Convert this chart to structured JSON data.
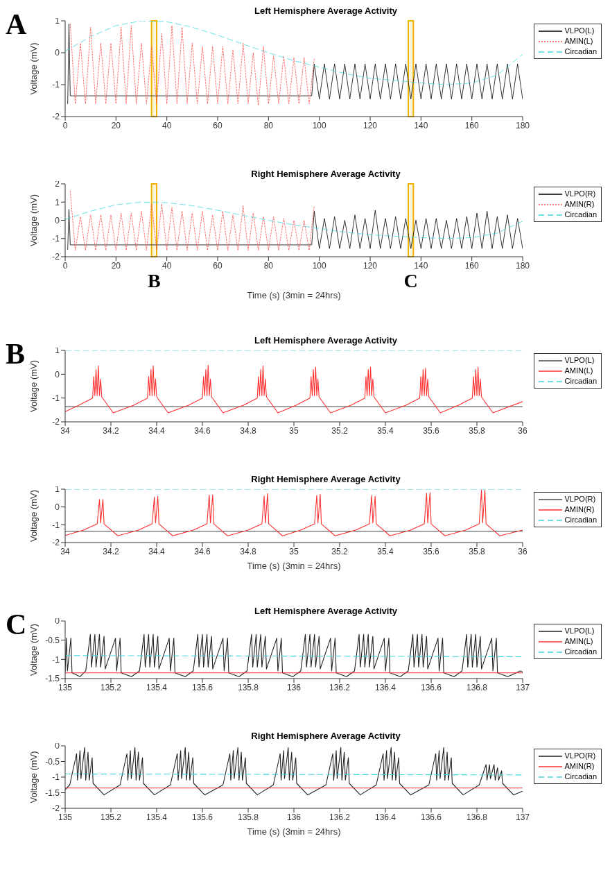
{
  "chart_data": [
    {
      "type": "line",
      "title": "Left Hemisphere Average Activity",
      "ylabel": "Voltage (mV)",
      "annotations": [
        "A"
      ],
      "xlim": [
        0,
        180
      ],
      "xticks": [
        0,
        20,
        40,
        60,
        80,
        100,
        120,
        140,
        160,
        180
      ],
      "ylim": [
        -2,
        1
      ],
      "yticks": [
        -2,
        -1,
        0,
        1
      ],
      "legend": "right",
      "bands": [
        {
          "axis": "x",
          "from": 34,
          "to": 36,
          "color": "#f0b400"
        },
        {
          "axis": "x",
          "from": 135,
          "to": 137,
          "color": "#f0b400"
        }
      ],
      "series": [
        {
          "name": "VLPO(L)",
          "color": "#000000",
          "line_style": "solid",
          "x": [
            1,
            1.5,
            2,
            97,
            98,
            100,
            102,
            104,
            106,
            108,
            110,
            112,
            114,
            116,
            118,
            120,
            122,
            124,
            126,
            128,
            130,
            132,
            134,
            136,
            138,
            140,
            142,
            144,
            146,
            148,
            150,
            152,
            154,
            156,
            158,
            160,
            162,
            164,
            166,
            168,
            170,
            172,
            174,
            176,
            178,
            180
          ],
          "values": [
            -1.6,
            0.9,
            -1.35,
            -1.35,
            -0.35,
            -1.45,
            -0.35,
            -1.45,
            -0.35,
            -1.45,
            -0.35,
            -1.45,
            -0.35,
            -1.45,
            -0.35,
            -1.45,
            -0.35,
            -1.45,
            -0.35,
            -1.45,
            -0.35,
            -1.45,
            -0.35,
            -1.45,
            -0.35,
            -1.45,
            -0.35,
            -1.45,
            -0.35,
            -1.45,
            -0.35,
            -1.45,
            -0.35,
            -1.45,
            -0.35,
            -1.45,
            -0.35,
            -1.45,
            -0.35,
            -1.45,
            -0.35,
            -1.45,
            -0.35,
            -1.45,
            -0.35,
            -1.45
          ]
        },
        {
          "name": "AMIN(L)",
          "color": "#ff5050",
          "line_style": "dotted",
          "x": [
            2,
            4,
            6,
            8,
            10,
            12,
            14,
            16,
            18,
            20,
            22,
            24,
            26,
            28,
            30,
            32,
            34,
            36,
            38,
            40,
            42,
            44,
            46,
            48,
            50,
            52,
            54,
            56,
            58,
            60,
            62,
            64,
            66,
            68,
            70,
            72,
            74,
            76,
            78,
            80,
            82,
            84,
            86,
            88,
            90,
            92,
            94,
            96,
            98
          ],
          "values": [
            0.9,
            -1.6,
            0.3,
            -1.6,
            0.8,
            -1.6,
            0.3,
            -1.6,
            0.3,
            -1.6,
            0.8,
            -1.6,
            0.85,
            -1.6,
            0.3,
            -1.6,
            0.2,
            -1.6,
            0.6,
            -1.6,
            0.85,
            -1.6,
            0.8,
            -1.6,
            0.3,
            -1.6,
            0.2,
            -1.6,
            0.2,
            -1.6,
            0.2,
            -1.6,
            0.1,
            -1.6,
            0.3,
            -1.6,
            0.0,
            -1.65,
            0.2,
            -1.6,
            -0.1,
            -1.6,
            -0.1,
            -1.6,
            -0.15,
            -1.6,
            -0.15,
            -1.6,
            -0.2
          ]
        },
        {
          "name": "Circadian",
          "color": "#40d8e0",
          "line_style": "dashed",
          "x": [
            0,
            10,
            20,
            30,
            40,
            50,
            60,
            70,
            80,
            90,
            100,
            110,
            120,
            130,
            140,
            150,
            160,
            170,
            180
          ],
          "values": [
            0.05,
            0.5,
            0.85,
            1.0,
            0.97,
            0.8,
            0.55,
            0.27,
            0.0,
            -0.25,
            -0.45,
            -0.65,
            -0.8,
            -0.87,
            -0.95,
            -1.0,
            -0.95,
            -0.7,
            -0.05
          ]
        }
      ]
    },
    {
      "type": "line",
      "title": "Right Hemisphere Average Activity",
      "xlabel": "Time (s) (3min = 24hrs)",
      "ylabel": "Voltage (mV)",
      "xlim": [
        0,
        180
      ],
      "xticks": [
        0,
        20,
        40,
        60,
        80,
        100,
        120,
        140,
        160,
        180
      ],
      "ylim": [
        -2,
        2
      ],
      "yticks": [
        -2,
        -1,
        0,
        1,
        2
      ],
      "legend": "right",
      "bands": [
        {
          "axis": "x",
          "from": 34,
          "to": 36,
          "color": "#f0b400",
          "label": "B"
        },
        {
          "axis": "x",
          "from": 135,
          "to": 137,
          "color": "#f0b400",
          "label": "C"
        }
      ],
      "series": [
        {
          "name": "VLPO(R)",
          "color": "#000000",
          "line_style": "solid",
          "x": [
            1,
            1.5,
            2,
            97,
            98,
            100,
            102,
            104,
            106,
            108,
            110,
            112,
            114,
            116,
            118,
            120,
            122,
            124,
            126,
            128,
            130,
            132,
            134,
            136,
            138,
            140,
            142,
            144,
            146,
            148,
            150,
            152,
            154,
            156,
            158,
            160,
            162,
            164,
            166,
            168,
            170,
            172,
            174,
            176,
            178,
            180
          ],
          "values": [
            -1.6,
            0.6,
            -1.35,
            -1.35,
            0.5,
            -1.55,
            0.1,
            -1.55,
            0.2,
            -1.55,
            0.0,
            -1.55,
            0.3,
            -1.55,
            0.1,
            -1.55,
            0.55,
            -1.55,
            0.1,
            -1.55,
            0.2,
            -1.55,
            0.1,
            -1.55,
            0.0,
            -1.55,
            0.1,
            -1.55,
            0.1,
            -1.55,
            0.0,
            -1.55,
            0.1,
            -1.55,
            0.2,
            -1.55,
            0.4,
            -1.55,
            0.5,
            -1.55,
            0.2,
            -1.55,
            0.3,
            -1.55,
            0.1,
            -1.55
          ]
        },
        {
          "name": "AMIN(R)",
          "color": "#ff5050",
          "line_style": "dotted",
          "x": [
            2,
            4,
            6,
            8,
            10,
            12,
            14,
            16,
            18,
            20,
            22,
            24,
            26,
            28,
            30,
            32,
            34,
            36,
            38,
            40,
            42,
            44,
            46,
            48,
            50,
            52,
            54,
            56,
            58,
            60,
            62,
            64,
            66,
            68,
            70,
            72,
            74,
            76,
            78,
            80,
            82,
            84,
            86,
            88,
            90,
            92,
            94,
            96,
            98
          ],
          "values": [
            1.6,
            -1.65,
            0.2,
            -1.65,
            0.3,
            -1.65,
            0.3,
            -1.65,
            0.3,
            -1.65,
            0.4,
            -1.65,
            0.4,
            -1.65,
            0.5,
            -1.65,
            0.9,
            -1.65,
            0.9,
            -1.65,
            0.7,
            -1.65,
            0.5,
            -1.65,
            0.4,
            -1.65,
            0.5,
            -1.65,
            0.3,
            -1.65,
            0.5,
            -1.65,
            0.3,
            -1.65,
            0.8,
            -1.65,
            0.4,
            -1.65,
            0.2,
            -1.65,
            0.2,
            -1.65,
            0.1,
            -1.65,
            0.0,
            -1.65,
            0.0,
            -1.65,
            0.8
          ]
        },
        {
          "name": "Circadian",
          "color": "#40d8e0",
          "line_style": "dashed",
          "x": [
            0,
            10,
            20,
            30,
            40,
            50,
            60,
            70,
            80,
            90,
            100,
            110,
            120,
            130,
            140,
            150,
            160,
            170,
            180
          ],
          "values": [
            0.05,
            0.5,
            0.85,
            1.0,
            0.97,
            0.8,
            0.55,
            0.27,
            0.0,
            -0.25,
            -0.45,
            -0.65,
            -0.8,
            -0.87,
            -0.95,
            -1.0,
            -0.95,
            -0.7,
            -0.05
          ]
        }
      ]
    },
    {
      "type": "line",
      "title": "Left Hemisphere Average Activity",
      "ylabel": "Voltage (mV)",
      "annotations": [
        "B"
      ],
      "xlim": [
        34,
        36
      ],
      "xticks": [
        34,
        34.2,
        34.4,
        34.6,
        34.8,
        35,
        35.2,
        35.4,
        35.6,
        35.8,
        36
      ],
      "ylim": [
        -2,
        1
      ],
      "yticks": [
        -2,
        -1,
        0,
        1
      ],
      "legend": "right",
      "series": [
        {
          "name": "VLPO(L)",
          "color": "#444444",
          "line_style": "solid",
          "x": [
            34,
            36
          ],
          "values": [
            -1.36,
            -1.36
          ]
        },
        {
          "name": "AMIN(L)",
          "color": "#ff3030",
          "line_style": "solid",
          "x": [
            34,
            34.06,
            34.12,
            34.125,
            34.13,
            34.135,
            34.14,
            34.145,
            34.15,
            34.155,
            34.16,
            34.21,
            34.3,
            34.36,
            34.365,
            34.37,
            34.375,
            34.38,
            34.385,
            34.39,
            34.395,
            34.4,
            34.45,
            34.54,
            34.6,
            34.605,
            34.61,
            34.615,
            34.62,
            34.625,
            34.63,
            34.635,
            34.64,
            34.69,
            34.78,
            34.84,
            34.845,
            34.85,
            34.855,
            34.86,
            34.865,
            34.87,
            34.875,
            34.88,
            34.93,
            35.01,
            35.07,
            35.075,
            35.08,
            35.085,
            35.09,
            35.095,
            35.1,
            35.105,
            35.11,
            35.16,
            35.25,
            35.31,
            35.315,
            35.32,
            35.325,
            35.33,
            35.335,
            35.34,
            35.345,
            35.35,
            35.4,
            35.49,
            35.55,
            35.555,
            35.56,
            35.565,
            35.57,
            35.575,
            35.58,
            35.585,
            35.59,
            35.64,
            35.72,
            35.78,
            35.785,
            35.79,
            35.795,
            35.8,
            35.805,
            35.81,
            35.815,
            35.82,
            35.87,
            36
          ],
          "values": [
            -1.57,
            -1.3,
            -1.0,
            -0.1,
            -0.9,
            0.2,
            -0.9,
            0.35,
            -0.9,
            -0.2,
            -0.95,
            -1.62,
            -1.3,
            -1.0,
            -0.1,
            -0.9,
            0.2,
            -0.9,
            0.35,
            -0.9,
            -0.2,
            -0.95,
            -1.62,
            -1.3,
            -1.0,
            -0.1,
            -0.9,
            0.2,
            -0.9,
            0.38,
            -0.9,
            -0.2,
            -0.95,
            -1.62,
            -1.3,
            -1.0,
            -0.1,
            -0.9,
            0.2,
            -0.9,
            0.35,
            -0.9,
            -0.2,
            -0.95,
            -1.62,
            -1.3,
            -1.0,
            -0.1,
            -0.9,
            0.2,
            -0.9,
            0.3,
            -0.9,
            -0.2,
            -0.95,
            -1.62,
            -1.3,
            -1.0,
            -0.1,
            -0.9,
            0.2,
            -0.9,
            0.3,
            -0.9,
            -0.2,
            -0.95,
            -1.62,
            -1.3,
            -1.0,
            -0.1,
            -0.9,
            0.2,
            -0.9,
            0.25,
            -0.9,
            -0.2,
            -0.95,
            -1.62,
            -1.3,
            -1.0,
            -0.1,
            -0.9,
            0.2,
            -0.9,
            0.3,
            -0.9,
            -0.2,
            -0.95,
            -1.62,
            -1.15
          ]
        },
        {
          "name": "Circadian",
          "color": "#40d8e0",
          "line_style": "dashed",
          "x": [
            34,
            36
          ],
          "values": [
            1.0,
            1.0
          ]
        }
      ]
    },
    {
      "type": "line",
      "title": "Right Hemisphere Average Activity",
      "xlabel": "Time (s) (3min = 24hrs)",
      "ylabel": "Voltage (mV)",
      "xlim": [
        34,
        36
      ],
      "xticks": [
        34,
        34.2,
        34.4,
        34.6,
        34.8,
        35,
        35.2,
        35.4,
        35.6,
        35.8,
        36
      ],
      "ylim": [
        -2,
        1
      ],
      "yticks": [
        -2,
        -1,
        0,
        1
      ],
      "legend": "right",
      "series": [
        {
          "name": "VLPO(R)",
          "color": "#444444",
          "line_style": "solid",
          "x": [
            34,
            36
          ],
          "values": [
            -1.36,
            -1.36
          ]
        },
        {
          "name": "AMIN(R)",
          "color": "#ff3030",
          "line_style": "solid",
          "x": [
            34,
            34.08,
            34.14,
            34.15,
            34.155,
            34.165,
            34.17,
            34.23,
            34.32,
            34.38,
            34.39,
            34.395,
            34.405,
            34.41,
            34.47,
            34.56,
            34.62,
            34.63,
            34.635,
            34.645,
            34.65,
            34.71,
            34.8,
            34.86,
            34.87,
            34.875,
            34.885,
            34.89,
            34.95,
            35.03,
            35.09,
            35.1,
            35.105,
            35.115,
            35.12,
            35.18,
            35.27,
            35.33,
            35.34,
            35.345,
            35.355,
            35.36,
            35.42,
            35.51,
            35.57,
            35.58,
            35.585,
            35.595,
            35.6,
            35.66,
            35.75,
            35.81,
            35.82,
            35.825,
            35.835,
            35.84,
            35.9,
            36
          ],
          "values": [
            -1.6,
            -1.3,
            -0.95,
            0.42,
            -0.9,
            0.42,
            -0.95,
            -1.62,
            -1.3,
            -0.95,
            0.55,
            -0.9,
            0.6,
            -0.95,
            -1.62,
            -1.3,
            -0.95,
            0.68,
            -0.9,
            0.68,
            -0.95,
            -1.62,
            -1.3,
            -0.95,
            0.62,
            -0.9,
            0.75,
            -0.95,
            -1.62,
            -1.3,
            -0.95,
            0.65,
            -0.9,
            0.72,
            -0.95,
            -1.62,
            -1.3,
            -0.95,
            0.65,
            -0.9,
            0.6,
            -0.95,
            -1.62,
            -1.3,
            -0.95,
            0.77,
            -0.9,
            0.8,
            -0.95,
            -1.62,
            -1.3,
            -0.95,
            0.95,
            -0.9,
            0.95,
            -0.95,
            -1.62,
            -1.3
          ]
        },
        {
          "name": "Circadian",
          "color": "#40d8e0",
          "line_style": "dashed",
          "x": [
            34,
            36
          ],
          "values": [
            1.0,
            1.0
          ]
        }
      ]
    },
    {
      "type": "line",
      "title": "Left Hemisphere Average Activity",
      "ylabel": "Voltage (mV)",
      "annotations": [
        "C"
      ],
      "xlim": [
        135,
        137
      ],
      "xticks": [
        135,
        135.2,
        135.4,
        135.6,
        135.8,
        136,
        136.2,
        136.4,
        136.6,
        136.8,
        137
      ],
      "ylim": [
        -1.5,
        0
      ],
      "yticks": [
        -1.5,
        -1,
        -0.5,
        0
      ],
      "legend": "right",
      "series": [
        {
          "name": "VLPO(L)",
          "color": "#222222",
          "line_style": "solid",
          "x": [
            135,
            135.005,
            135.01,
            135.025,
            135.03,
            135.065,
            135.09,
            135.11,
            135.115,
            135.13,
            135.135,
            135.15,
            135.155,
            135.17,
            135.175,
            135.22,
            135.225,
            135.24,
            135.245,
            135.29,
            135.325,
            135.345,
            135.35,
            135.365,
            135.37,
            135.385,
            135.39,
            135.405,
            135.41,
            135.455,
            135.46,
            135.475,
            135.48,
            135.525,
            135.56,
            135.58,
            135.585,
            135.6,
            135.605,
            135.62,
            135.625,
            135.64,
            135.645,
            135.69,
            135.695,
            135.71,
            135.715,
            135.76,
            135.795,
            135.815,
            135.82,
            135.835,
            135.84,
            135.855,
            135.86,
            135.875,
            135.88,
            135.925,
            135.93,
            135.945,
            135.95,
            135.995,
            136.03,
            136.05,
            136.055,
            136.07,
            136.075,
            136.09,
            136.095,
            136.11,
            136.115,
            136.16,
            136.165,
            136.18,
            136.185,
            136.23,
            136.265,
            136.285,
            136.29,
            136.305,
            136.31,
            136.325,
            136.33,
            136.345,
            136.35,
            136.395,
            136.4,
            136.415,
            136.42,
            136.465,
            136.5,
            136.52,
            136.525,
            136.54,
            136.545,
            136.56,
            136.565,
            136.58,
            136.585,
            136.63,
            136.635,
            136.65,
            136.655,
            136.7,
            136.735,
            136.755,
            136.76,
            136.775,
            136.78,
            136.795,
            136.8,
            136.815,
            136.82,
            136.865,
            136.87,
            136.885,
            136.89,
            136.935,
            136.99,
            137
          ],
          "values": [
            -1.3,
            -0.45,
            -1.3,
            -0.45,
            -1.35,
            -1.45,
            -1.3,
            -0.35,
            -1.2,
            -0.35,
            -1.2,
            -0.35,
            -1.2,
            -0.4,
            -1.25,
            -0.45,
            -1.3,
            -0.45,
            -1.35,
            -1.45,
            -1.3,
            -0.35,
            -1.2,
            -0.35,
            -1.2,
            -0.35,
            -1.2,
            -0.4,
            -1.25,
            -0.45,
            -1.3,
            -0.45,
            -1.35,
            -1.45,
            -1.3,
            -0.35,
            -1.2,
            -0.35,
            -1.2,
            -0.35,
            -1.2,
            -0.4,
            -1.25,
            -0.45,
            -1.3,
            -0.45,
            -1.35,
            -1.45,
            -1.3,
            -0.35,
            -1.2,
            -0.35,
            -1.2,
            -0.35,
            -1.2,
            -0.4,
            -1.25,
            -0.45,
            -1.3,
            -0.45,
            -1.35,
            -1.45,
            -1.3,
            -0.35,
            -1.2,
            -0.35,
            -1.2,
            -0.35,
            -1.2,
            -0.4,
            -1.25,
            -0.45,
            -1.3,
            -0.45,
            -1.35,
            -1.45,
            -1.3,
            -0.35,
            -1.2,
            -0.35,
            -1.2,
            -0.35,
            -1.2,
            -0.4,
            -1.25,
            -0.45,
            -1.3,
            -0.45,
            -1.35,
            -1.45,
            -1.3,
            -0.35,
            -1.2,
            -0.35,
            -1.2,
            -0.35,
            -1.2,
            -0.4,
            -1.25,
            -0.45,
            -1.3,
            -0.45,
            -1.35,
            -1.45,
            -1.3,
            -0.35,
            -1.2,
            -0.35,
            -1.2,
            -0.35,
            -1.2,
            -0.4,
            -1.25,
            -0.45,
            -1.3,
            -0.45,
            -1.35,
            -1.45,
            -1.3,
            -1.33
          ]
        },
        {
          "name": "AMIN(L)",
          "color": "#ff3030",
          "line_style": "solid",
          "x": [
            135,
            137
          ],
          "values": [
            -1.35,
            -1.35
          ]
        },
        {
          "name": "Circadian",
          "color": "#40d8e0",
          "line_style": "dashed",
          "x": [
            135,
            137
          ],
          "values": [
            -0.9,
            -0.93
          ]
        }
      ]
    },
    {
      "type": "line",
      "title": "Right Hemisphere Average Activity",
      "xlabel": "Time (s) (3min = 24hrs)",
      "ylabel": "Voltage (mV)",
      "xlim": [
        135,
        137
      ],
      "xticks": [
        135,
        135.2,
        135.4,
        135.6,
        135.8,
        136,
        136.2,
        136.4,
        136.6,
        136.8,
        137
      ],
      "ylim": [
        -2,
        0
      ],
      "yticks": [
        -2,
        -1.5,
        -1,
        -0.5,
        0
      ],
      "legend": "right",
      "series": [
        {
          "name": "VLPO(R)",
          "color": "#222222",
          "line_style": "solid",
          "x": [
            135,
            135.02,
            135.05,
            135.054,
            135.065,
            135.069,
            135.085,
            135.09,
            135.1,
            135.105,
            135.118,
            135.122,
            135.17,
            135.24,
            135.27,
            135.274,
            135.285,
            135.289,
            135.305,
            135.31,
            135.32,
            135.325,
            135.338,
            135.342,
            135.39,
            135.46,
            135.49,
            135.494,
            135.505,
            135.509,
            135.525,
            135.53,
            135.54,
            135.545,
            135.558,
            135.562,
            135.61,
            135.69,
            135.72,
            135.724,
            135.735,
            135.739,
            135.755,
            135.76,
            135.77,
            135.775,
            135.788,
            135.792,
            135.84,
            135.91,
            135.94,
            135.944,
            135.955,
            135.959,
            135.975,
            135.98,
            135.99,
            135.995,
            136.008,
            136.012,
            136.06,
            136.14,
            136.17,
            136.174,
            136.185,
            136.189,
            136.205,
            136.21,
            136.22,
            136.225,
            136.238,
            136.242,
            136.29,
            136.36,
            136.39,
            136.394,
            136.405,
            136.409,
            136.425,
            136.43,
            136.44,
            136.445,
            136.458,
            136.462,
            136.51,
            136.59,
            136.62,
            136.624,
            136.635,
            136.639,
            136.655,
            136.66,
            136.67,
            136.675,
            136.688,
            136.692,
            136.74,
            136.81,
            136.84,
            136.844,
            136.855,
            136.859,
            136.875,
            136.88,
            136.89,
            136.895,
            136.908,
            136.912,
            136.96,
            137
          ],
          "values": [
            -1.4,
            -1.25,
            -0.25,
            -1.1,
            -0.15,
            -1.05,
            -0.05,
            -1.1,
            -0.2,
            -1.1,
            -0.38,
            -1.2,
            -1.57,
            -1.25,
            -0.25,
            -1.1,
            -0.15,
            -1.05,
            -0.05,
            -1.1,
            -0.2,
            -1.1,
            -0.38,
            -1.2,
            -1.57,
            -1.25,
            -0.25,
            -1.1,
            -0.15,
            -1.05,
            -0.05,
            -1.1,
            -0.2,
            -1.1,
            -0.38,
            -1.2,
            -1.57,
            -1.25,
            -0.25,
            -1.1,
            -0.15,
            -1.05,
            -0.05,
            -1.1,
            -0.2,
            -1.1,
            -0.38,
            -1.2,
            -1.57,
            -1.25,
            -0.25,
            -1.1,
            -0.15,
            -1.05,
            -0.05,
            -1.1,
            -0.2,
            -1.1,
            -0.38,
            -1.2,
            -1.57,
            -1.25,
            -0.25,
            -1.1,
            -0.15,
            -1.05,
            -0.05,
            -1.1,
            -0.2,
            -1.1,
            -0.38,
            -1.2,
            -1.57,
            -1.25,
            -0.25,
            -1.1,
            -0.15,
            -1.05,
            -0.05,
            -1.1,
            -0.2,
            -1.1,
            -0.38,
            -1.2,
            -1.57,
            -1.25,
            -0.25,
            -1.1,
            -0.15,
            -1.05,
            -0.05,
            -1.1,
            -0.2,
            -1.1,
            -0.38,
            -1.2,
            -1.57,
            -1.25,
            -0.6,
            -1.1,
            -0.6,
            -1.05,
            -0.6,
            -1.1,
            -0.7,
            -1.1,
            -0.8,
            -1.2,
            -1.57,
            -1.45
          ]
        },
        {
          "name": "AMIN(R)",
          "color": "#ff3030",
          "line_style": "solid",
          "x": [
            135,
            137
          ],
          "values": [
            -1.35,
            -1.35
          ]
        },
        {
          "name": "Circadian",
          "color": "#40d8e0",
          "line_style": "dashed",
          "x": [
            135,
            137
          ],
          "values": [
            -0.9,
            -0.93
          ]
        }
      ]
    }
  ]
}
